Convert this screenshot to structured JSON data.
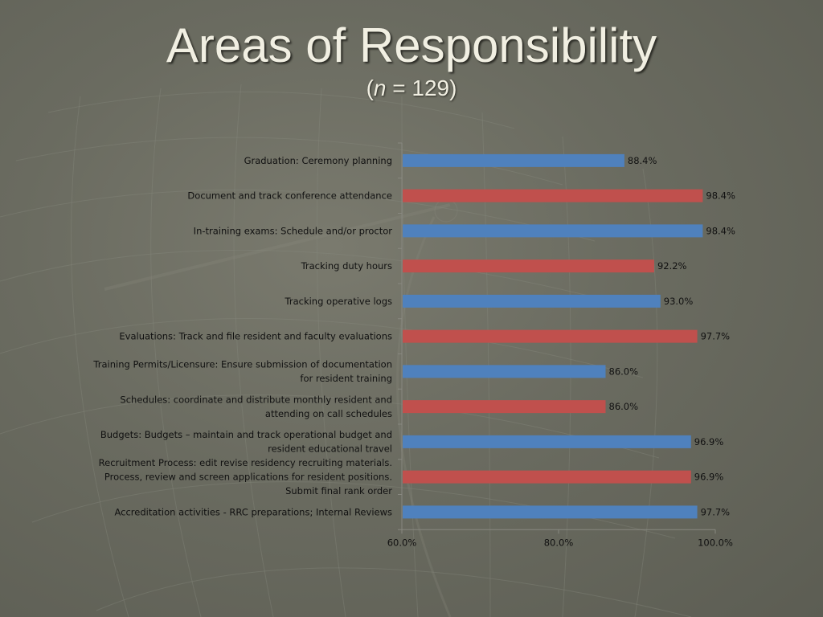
{
  "slide": {
    "title": "Areas of Responsibility",
    "subtitle_open": "(",
    "subtitle_n": "n",
    "subtitle_rest": " = 129)"
  },
  "colors": {
    "blue": "#4f81bd",
    "red": "#c0504d",
    "text": "#111111",
    "axis": "#888880"
  },
  "chart_data": {
    "type": "bar",
    "orientation": "horizontal",
    "categories": [
      "Graduation: Ceremony planning",
      "Document and track conference attendance",
      "In-training exams: Schedule and/or proctor",
      "Tracking duty hours",
      "Tracking operative logs",
      "Evaluations: Track and file resident and faculty evaluations",
      "Training Permits/Licensure: Ensure submission of documentation for resident training",
      "Schedules: coordinate and distribute monthly resident and attending on call schedules",
      "Budgets: Budgets – maintain and track operational budget and resident educational travel",
      "Recruitment Process: edit revise residency recruiting materials. Process, review and screen applications for resident positions. Submit final rank order",
      "Accreditation activities - RRC preparations; Internal Reviews"
    ],
    "category_lines": [
      [
        "Graduation: Ceremony planning"
      ],
      [
        "Document and track conference attendance"
      ],
      [
        "In-training exams: Schedule and/or proctor"
      ],
      [
        "Tracking duty hours"
      ],
      [
        "Tracking operative logs"
      ],
      [
        "Evaluations: Track and file resident and faculty evaluations"
      ],
      [
        "Training Permits/Licensure: Ensure submission of documentation",
        "for resident training"
      ],
      [
        "Schedules: coordinate and distribute monthly resident and",
        "attending on call schedules"
      ],
      [
        "Budgets: Budgets – maintain and track operational budget and",
        "resident educational travel"
      ],
      [
        "Recruitment Process: edit revise residency recruiting materials.",
        "Process, review and screen applications for resident positions.",
        "Submit final rank order"
      ],
      [
        "Accreditation activities - RRC preparations; Internal Reviews"
      ]
    ],
    "values": [
      88.4,
      98.4,
      98.4,
      92.2,
      93.0,
      97.7,
      86.0,
      86.0,
      96.9,
      96.9,
      97.7
    ],
    "value_labels": [
      "88.4%",
      "98.4%",
      "98.4%",
      "92.2%",
      "93.0%",
      "97.7%",
      "86.0%",
      "86.0%",
      "96.9%",
      "96.9%",
      "97.7%"
    ],
    "bar_colors": [
      "blue",
      "red",
      "blue",
      "red",
      "blue",
      "red",
      "blue",
      "red",
      "blue",
      "red",
      "blue"
    ],
    "xlim": [
      60,
      100
    ],
    "xticks": [
      60,
      80,
      100
    ],
    "xtick_labels": [
      "60.0%",
      "80.0%",
      "100.0%"
    ],
    "grid": false,
    "legend": "none"
  }
}
